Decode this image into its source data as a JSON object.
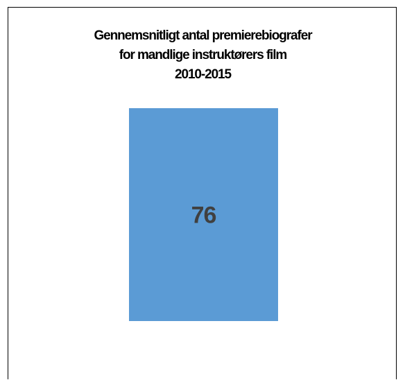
{
  "chart_data": {
    "type": "bar",
    "title_lines": [
      "Gennemsnitligt antal premierebiografer",
      "for mandlige instruktørers film",
      "2010-2015"
    ],
    "categories": [
      ""
    ],
    "values": [
      76
    ],
    "data_labels": [
      "76"
    ],
    "xlabel": "",
    "ylabel": "",
    "ylim": [
      0,
      76
    ],
    "grid": false,
    "legend": "none",
    "colors": {
      "bar": "#5B9BD5",
      "label": "#404040"
    }
  }
}
